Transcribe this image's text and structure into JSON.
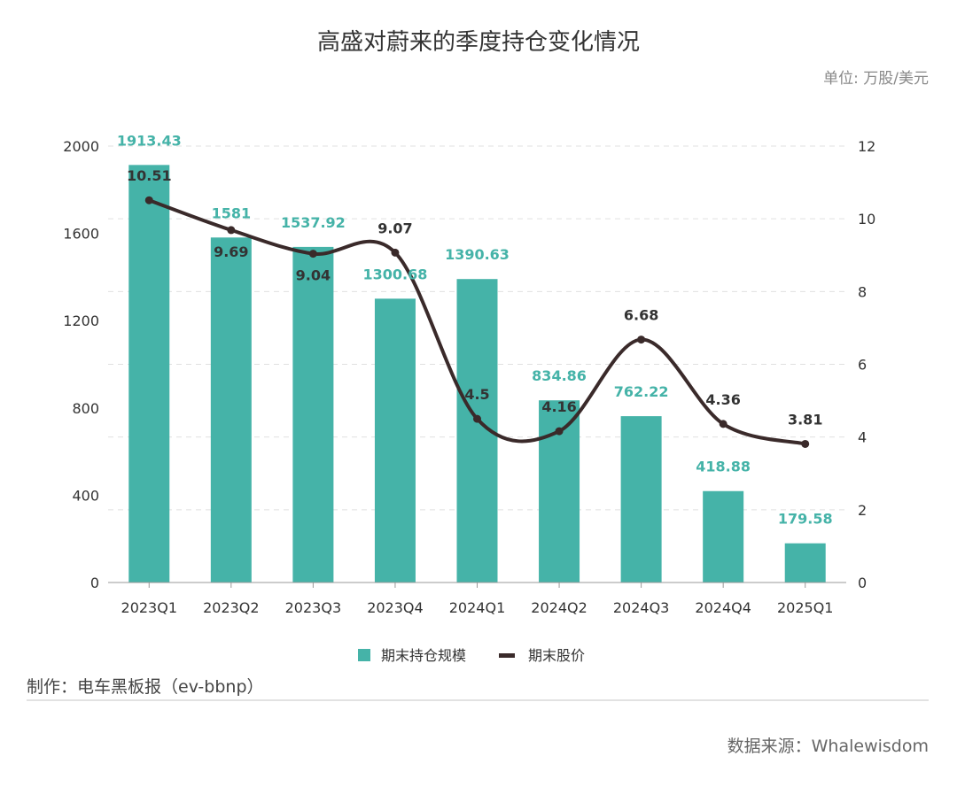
{
  "chart_data": {
    "type": "bar",
    "title": "高盛对蔚来的季度持仓变化情况",
    "unit": "单位: 万股/美元",
    "categories": [
      "2023Q1",
      "2023Q2",
      "2023Q3",
      "2023Q4",
      "2024Q1",
      "2024Q2",
      "2024Q3",
      "2024Q4",
      "2025Q1"
    ],
    "series": [
      {
        "name": "期末持仓规模",
        "type": "bar",
        "axis": "left",
        "color": "#45b3a8",
        "values": [
          1913.43,
          1581,
          1537.92,
          1300.68,
          1390.63,
          834.86,
          762.22,
          418.88,
          179.58
        ]
      },
      {
        "name": "期末股价",
        "type": "line",
        "axis": "right",
        "color": "#3a2a2a",
        "smooth": true,
        "values": [
          10.51,
          9.69,
          9.04,
          9.07,
          4.5,
          4.16,
          6.68,
          4.36,
          3.81
        ]
      }
    ],
    "y_left": {
      "range": [
        0,
        2000
      ],
      "ticks": [
        0,
        400,
        800,
        1200,
        1600,
        2000
      ]
    },
    "y_right": {
      "range": [
        0,
        12
      ],
      "ticks": [
        0,
        2,
        4,
        6,
        8,
        10,
        12
      ]
    },
    "grid": "horizontal dashed",
    "legend_position": "bottom"
  },
  "footer": {
    "maker": "制作：电车黑板报（ev-bbnp）",
    "source": "数据来源：Whalewisdom"
  }
}
